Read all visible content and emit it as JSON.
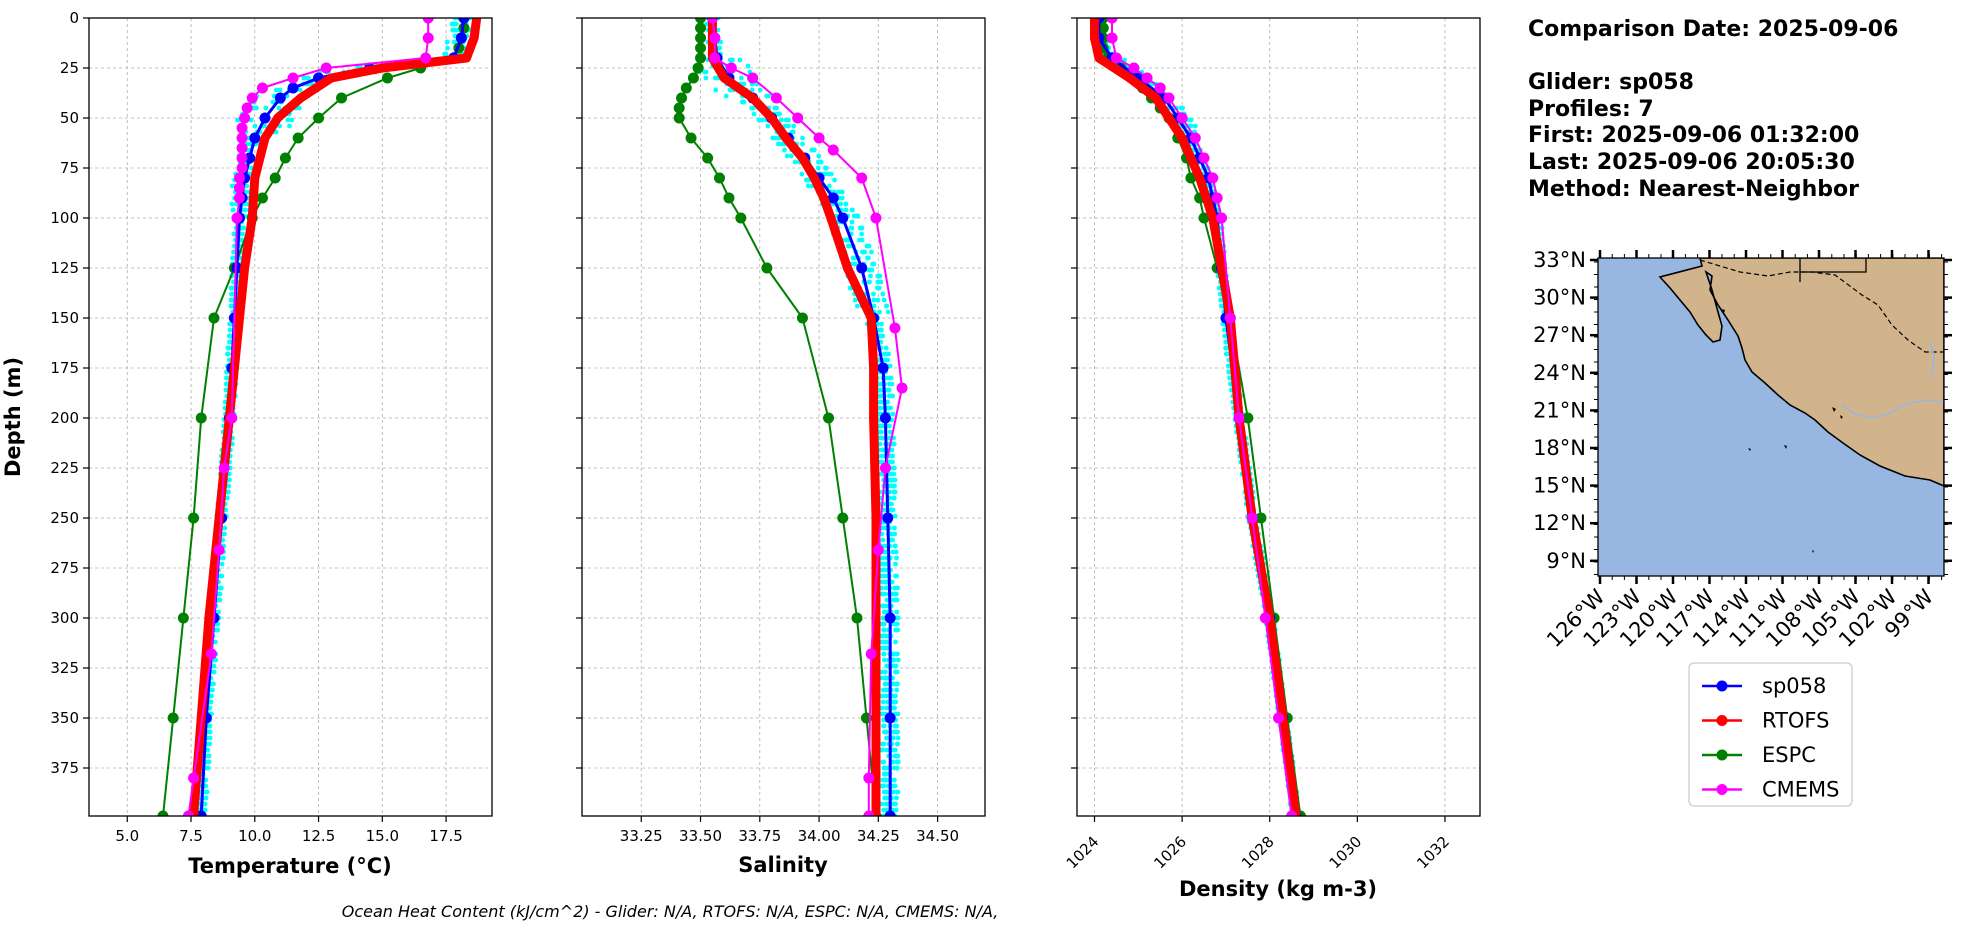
{
  "info": {
    "comparison_date": "Comparison Date: 2025-09-06",
    "glider": "Glider: sp058",
    "profiles": "Profiles: 7",
    "first": "First: 2025-09-06 01:32:00",
    "last": "Last: 2025-09-06 20:05:30",
    "method": "Method: Nearest-Neighbor"
  },
  "footer": "Ocean Heat Content (kJ/cm^2) - Glider: N/A,  RTOFS: N/A,  ESPC: N/A,  CMEMS: N/A,",
  "colors": {
    "sp058": "#0000ff",
    "RTOFS": "#ff0000",
    "ESPC": "#008000",
    "CMEMS": "#ff00ff",
    "glider_raw": "#00ffff",
    "ocean": "#97b6e1",
    "land": "#d2b48c"
  },
  "map": {
    "lat_ticks": [
      "33°N",
      "30°N",
      "27°N",
      "24°N",
      "21°N",
      "18°N",
      "15°N",
      "12°N",
      "9°N"
    ],
    "lon_ticks": [
      "126°W",
      "123°W",
      "120°W",
      "117°W",
      "114°W",
      "111°W",
      "108°W",
      "105°W",
      "102°W",
      "99°W"
    ]
  },
  "legend": [
    "sp058",
    "RTOFS",
    "ESPC",
    "CMEMS"
  ],
  "chart_data": [
    {
      "type": "line",
      "xlabel": "Temperature (°C)",
      "ylabel": "Depth (m)",
      "xlim": [
        3.5,
        19.3
      ],
      "ylim": [
        399,
        0
      ],
      "xticks": [
        "5.0",
        "7.5",
        "10.0",
        "12.5",
        "15.0",
        "17.5"
      ],
      "yticks": [
        "0",
        "25",
        "50",
        "75",
        "100",
        "125",
        "150",
        "175",
        "200",
        "225",
        "250",
        "275",
        "300",
        "325",
        "350",
        "375"
      ],
      "grid": true,
      "series": [
        {
          "name": "sp058",
          "depth": [
            0,
            10,
            20,
            25,
            30,
            35,
            40,
            50,
            60,
            70,
            80,
            90,
            100,
            125,
            150,
            175,
            200,
            250,
            300,
            350,
            399
          ],
          "values": [
            18.2,
            18.1,
            17.8,
            14.5,
            12.5,
            11.5,
            11.0,
            10.4,
            10.0,
            9.8,
            9.6,
            9.5,
            9.4,
            9.3,
            9.2,
            9.1,
            9.0,
            8.7,
            8.4,
            8.1,
            7.9
          ]
        },
        {
          "name": "RTOFS",
          "depth": [
            0,
            10,
            20,
            25,
            30,
            40,
            50,
            60,
            80,
            100,
            125,
            150,
            175,
            200,
            250,
            300,
            350,
            399
          ],
          "values": [
            18.7,
            18.6,
            18.3,
            15.0,
            13.0,
            11.8,
            10.9,
            10.4,
            10.0,
            9.9,
            9.6,
            9.4,
            9.2,
            9.0,
            8.6,
            8.2,
            7.9,
            7.6
          ]
        },
        {
          "name": "ESPC",
          "depth": [
            0,
            5,
            10,
            15,
            20,
            25,
            30,
            40,
            50,
            60,
            70,
            80,
            90,
            100,
            125,
            150,
            200,
            250,
            300,
            350,
            399
          ],
          "values": [
            18.2,
            18.2,
            18.1,
            18.0,
            17.8,
            16.5,
            15.2,
            13.4,
            12.5,
            11.7,
            11.2,
            10.8,
            10.3,
            9.9,
            9.2,
            8.4,
            7.9,
            7.6,
            7.2,
            6.8,
            6.4
          ]
        },
        {
          "name": "CMEMS",
          "depth": [
            0,
            10,
            20,
            25,
            30,
            35,
            40,
            45,
            50,
            55,
            60,
            65,
            70,
            75,
            80,
            85,
            90,
            100,
            200,
            225,
            266,
            318,
            380,
            399
          ],
          "values": [
            16.8,
            16.8,
            16.7,
            12.8,
            11.5,
            10.3,
            9.9,
            9.7,
            9.6,
            9.5,
            9.5,
            9.5,
            9.5,
            9.5,
            9.4,
            9.4,
            9.4,
            9.3,
            9.1,
            8.8,
            8.6,
            8.3,
            7.6,
            7.4
          ]
        }
      ]
    },
    {
      "type": "line",
      "xlabel": "Salinity",
      "xlim": [
        33.0,
        34.7
      ],
      "ylim": [
        399,
        0
      ],
      "xticks": [
        "33.25",
        "33.50",
        "33.75",
        "34.00",
        "34.25",
        "34.50"
      ],
      "grid": true,
      "series": [
        {
          "name": "sp058",
          "depth": [
            0,
            10,
            20,
            30,
            40,
            50,
            60,
            70,
            80,
            90,
            100,
            125,
            150,
            175,
            200,
            250,
            300,
            350,
            399
          ],
          "values": [
            33.55,
            33.56,
            33.57,
            33.62,
            33.72,
            33.8,
            33.87,
            33.94,
            34.0,
            34.06,
            34.1,
            34.18,
            34.23,
            34.27,
            34.28,
            34.29,
            34.3,
            34.3,
            34.3
          ]
        },
        {
          "name": "RTOFS",
          "depth": [
            0,
            10,
            20,
            30,
            40,
            50,
            60,
            70,
            80,
            90,
            100,
            125,
            150,
            175,
            200,
            250,
            300,
            350,
            399
          ],
          "values": [
            33.55,
            33.55,
            33.55,
            33.6,
            33.72,
            33.8,
            33.86,
            33.93,
            33.98,
            34.02,
            34.05,
            34.12,
            34.22,
            34.23,
            34.23,
            34.24,
            34.24,
            34.24,
            34.24
          ]
        },
        {
          "name": "ESPC",
          "depth": [
            0,
            5,
            10,
            15,
            20,
            25,
            30,
            35,
            40,
            45,
            50,
            60,
            70,
            80,
            90,
            100,
            125,
            150,
            200,
            250,
            300,
            350,
            399
          ],
          "values": [
            33.5,
            33.5,
            33.5,
            33.5,
            33.5,
            33.49,
            33.47,
            33.44,
            33.42,
            33.41,
            33.41,
            33.46,
            33.53,
            33.58,
            33.62,
            33.67,
            33.78,
            33.93,
            34.04,
            34.1,
            34.16,
            34.2,
            34.24
          ]
        },
        {
          "name": "CMEMS",
          "depth": [
            0,
            10,
            20,
            25,
            30,
            40,
            50,
            60,
            66,
            80,
            100,
            155,
            185,
            225,
            266,
            318,
            380,
            399
          ],
          "values": [
            33.55,
            33.56,
            33.56,
            33.63,
            33.72,
            33.82,
            33.91,
            34.0,
            34.06,
            34.18,
            34.24,
            34.32,
            34.35,
            34.28,
            34.25,
            34.22,
            34.21,
            34.21
          ]
        }
      ]
    },
    {
      "type": "line",
      "xlabel": "Density (kg m-3)",
      "xlim": [
        1023.6,
        1032.8
      ],
      "ylim": [
        399,
        0
      ],
      "xticks": [
        "1024",
        "1026",
        "1028",
        "1030",
        "1032"
      ],
      "grid": true,
      "series": [
        {
          "name": "sp058",
          "depth": [
            0,
            10,
            20,
            30,
            40,
            50,
            60,
            70,
            80,
            90,
            100,
            125,
            150,
            200,
            250,
            300,
            350,
            399
          ],
          "values": [
            1024.1,
            1024.1,
            1024.4,
            1025.0,
            1025.6,
            1025.9,
            1026.2,
            1026.4,
            1026.6,
            1026.7,
            1026.8,
            1026.9,
            1027.0,
            1027.3,
            1027.6,
            1028.0,
            1028.3,
            1028.6
          ]
        },
        {
          "name": "RTOFS",
          "depth": [
            0,
            10,
            20,
            30,
            40,
            50,
            60,
            80,
            100,
            125,
            150,
            200,
            250,
            300,
            350,
            399
          ],
          "values": [
            1024.0,
            1024.0,
            1024.1,
            1024.8,
            1025.4,
            1025.7,
            1026.0,
            1026.4,
            1026.7,
            1026.9,
            1027.1,
            1027.3,
            1027.6,
            1028.0,
            1028.3,
            1028.6
          ]
        },
        {
          "name": "ESPC",
          "depth": [
            0,
            5,
            10,
            15,
            20,
            25,
            30,
            35,
            40,
            45,
            50,
            60,
            70,
            80,
            90,
            100,
            125,
            150,
            200,
            250,
            300,
            350,
            399
          ],
          "values": [
            1024.2,
            1024.2,
            1024.2,
            1024.2,
            1024.3,
            1024.6,
            1024.9,
            1025.1,
            1025.3,
            1025.5,
            1025.7,
            1025.9,
            1026.1,
            1026.2,
            1026.4,
            1026.5,
            1026.8,
            1027.1,
            1027.5,
            1027.8,
            1028.1,
            1028.4,
            1028.7
          ]
        },
        {
          "name": "CMEMS",
          "depth": [
            0,
            10,
            20,
            25,
            30,
            35,
            40,
            50,
            60,
            70,
            80,
            90,
            100,
            150,
            200,
            250,
            300,
            350,
            399
          ],
          "values": [
            1024.4,
            1024.4,
            1024.5,
            1024.9,
            1025.2,
            1025.5,
            1025.7,
            1026.0,
            1026.3,
            1026.5,
            1026.7,
            1026.8,
            1026.9,
            1027.1,
            1027.3,
            1027.6,
            1027.9,
            1028.2,
            1028.5
          ]
        }
      ]
    }
  ]
}
